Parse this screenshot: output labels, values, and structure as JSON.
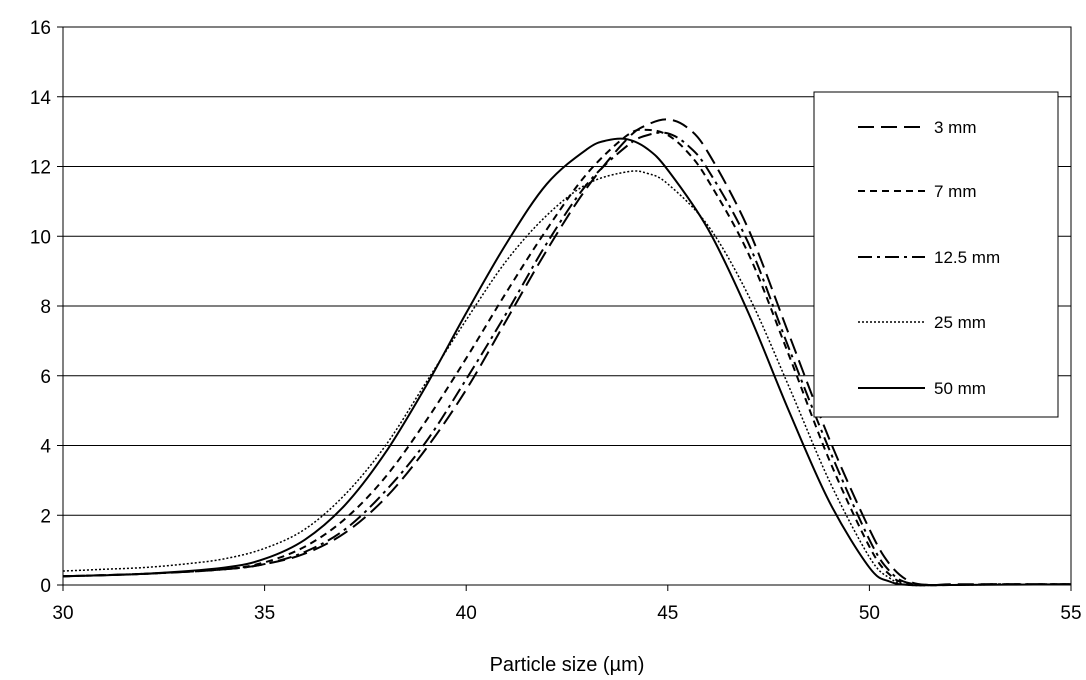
{
  "chart_data": {
    "type": "line",
    "title": "",
    "xlabel": "Particle size (µm)",
    "ylabel": "",
    "xlim": [
      30,
      55
    ],
    "ylim": [
      0,
      16
    ],
    "xticks": [
      30,
      35,
      40,
      45,
      50,
      55
    ],
    "yticks": [
      0,
      2,
      4,
      6,
      8,
      10,
      12,
      14,
      16
    ],
    "grid": "horizontal",
    "legend_position": "right",
    "series": [
      {
        "name": "3 mm",
        "style": "long-dash",
        "points": [
          [
            30,
            0.25
          ],
          [
            32,
            0.32
          ],
          [
            34,
            0.45
          ],
          [
            35,
            0.6
          ],
          [
            36,
            0.9
          ],
          [
            37,
            1.5
          ],
          [
            38,
            2.5
          ],
          [
            39,
            3.9
          ],
          [
            40,
            5.6
          ],
          [
            41,
            7.6
          ],
          [
            42,
            9.6
          ],
          [
            43,
            11.4
          ],
          [
            44,
            12.8
          ],
          [
            44.5,
            13.2
          ],
          [
            45,
            13.35
          ],
          [
            45.5,
            13.1
          ],
          [
            46,
            12.4
          ],
          [
            47,
            10.2
          ],
          [
            48,
            7.2
          ],
          [
            49,
            4.2
          ],
          [
            50,
            1.6
          ],
          [
            50.5,
            0.6
          ],
          [
            51,
            0.1
          ],
          [
            51.5,
            0
          ],
          [
            52,
            0.02
          ],
          [
            53,
            0.02
          ],
          [
            55,
            0.02
          ]
        ]
      },
      {
        "name": "7 mm",
        "style": "short-dash",
        "points": [
          [
            30,
            0.25
          ],
          [
            32,
            0.32
          ],
          [
            34,
            0.45
          ],
          [
            35,
            0.65
          ],
          [
            36,
            1.1
          ],
          [
            37,
            1.9
          ],
          [
            38,
            3.1
          ],
          [
            39,
            4.7
          ],
          [
            40,
            6.5
          ],
          [
            41,
            8.4
          ],
          [
            42,
            10.2
          ],
          [
            43,
            11.8
          ],
          [
            44,
            12.9
          ],
          [
            44.5,
            13.05
          ],
          [
            45,
            12.9
          ],
          [
            45.5,
            12.4
          ],
          [
            46,
            11.6
          ],
          [
            47,
            9.5
          ],
          [
            48,
            6.6
          ],
          [
            49,
            3.6
          ],
          [
            50,
            1.1
          ],
          [
            50.5,
            0.3
          ],
          [
            51,
            0.02
          ],
          [
            52,
            0
          ],
          [
            53,
            0.02
          ],
          [
            55,
            0.02
          ]
        ]
      },
      {
        "name": "12.5 mm",
        "style": "dash-dot",
        "points": [
          [
            30,
            0.25
          ],
          [
            32,
            0.32
          ],
          [
            34,
            0.45
          ],
          [
            35,
            0.6
          ],
          [
            36,
            0.95
          ],
          [
            37,
            1.6
          ],
          [
            38,
            2.7
          ],
          [
            39,
            4.1
          ],
          [
            40,
            5.9
          ],
          [
            41,
            7.8
          ],
          [
            42,
            9.8
          ],
          [
            43,
            11.5
          ],
          [
            44,
            12.6
          ],
          [
            44.5,
            12.9
          ],
          [
            45,
            12.95
          ],
          [
            45.5,
            12.6
          ],
          [
            46,
            11.9
          ],
          [
            47,
            9.8
          ],
          [
            48,
            6.8
          ],
          [
            49,
            3.9
          ],
          [
            50,
            1.3
          ],
          [
            50.5,
            0.4
          ],
          [
            51,
            0.05
          ],
          [
            52,
            0
          ],
          [
            53,
            0.02
          ],
          [
            55,
            0.02
          ]
        ]
      },
      {
        "name": "25 mm",
        "style": "dotted",
        "points": [
          [
            30,
            0.4
          ],
          [
            31,
            0.45
          ],
          [
            32,
            0.5
          ],
          [
            33,
            0.6
          ],
          [
            34,
            0.75
          ],
          [
            35,
            1.05
          ],
          [
            36,
            1.6
          ],
          [
            37,
            2.6
          ],
          [
            38,
            4.0
          ],
          [
            39,
            5.8
          ],
          [
            40,
            7.6
          ],
          [
            41,
            9.3
          ],
          [
            42,
            10.6
          ],
          [
            43,
            11.5
          ],
          [
            44,
            11.85
          ],
          [
            44.5,
            11.8
          ],
          [
            45,
            11.5
          ],
          [
            46,
            10.3
          ],
          [
            47,
            8.3
          ],
          [
            48,
            5.7
          ],
          [
            49,
            3.0
          ],
          [
            50,
            0.8
          ],
          [
            50.5,
            0.2
          ],
          [
            51,
            0
          ],
          [
            52,
            0
          ],
          [
            55,
            0.02
          ]
        ]
      },
      {
        "name": "50 mm",
        "style": "solid",
        "points": [
          [
            30,
            0.25
          ],
          [
            32,
            0.32
          ],
          [
            34,
            0.5
          ],
          [
            35,
            0.75
          ],
          [
            36,
            1.3
          ],
          [
            37,
            2.3
          ],
          [
            38,
            3.8
          ],
          [
            39,
            5.7
          ],
          [
            40,
            7.8
          ],
          [
            41,
            9.8
          ],
          [
            42,
            11.5
          ],
          [
            43,
            12.5
          ],
          [
            43.5,
            12.75
          ],
          [
            44,
            12.78
          ],
          [
            44.5,
            12.5
          ],
          [
            45,
            11.9
          ],
          [
            46,
            10.2
          ],
          [
            47,
            7.8
          ],
          [
            48,
            5.0
          ],
          [
            49,
            2.4
          ],
          [
            50,
            0.5
          ],
          [
            50.5,
            0.1
          ],
          [
            51,
            0
          ],
          [
            52,
            0
          ],
          [
            55,
            0.02
          ]
        ]
      }
    ]
  }
}
